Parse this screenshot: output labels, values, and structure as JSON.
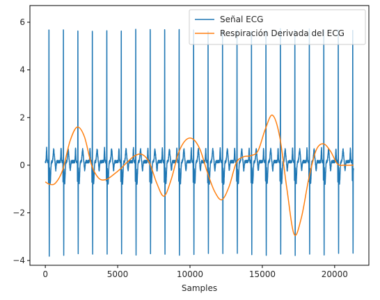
{
  "chart_data": {
    "type": "line",
    "title": "",
    "xlabel": "Samples",
    "ylabel": "",
    "xlim": [
      -1065,
      22365
    ],
    "ylim": [
      -4.2,
      6.7
    ],
    "xticks": [
      0,
      5000,
      10000,
      15000,
      20000
    ],
    "yticks": [
      -4,
      -2,
      0,
      2,
      4,
      6
    ],
    "xtick_labels": [
      "0",
      "5000",
      "10000",
      "15000",
      "20000"
    ],
    "ytick_labels": [
      "−4",
      "−2",
      "0",
      "2",
      "4",
      "6"
    ],
    "grid": false,
    "legend_position": "top-right",
    "series": [
      {
        "name": "Señal ECG",
        "color": "#1f77b4",
        "description_of_shape": "periodic ECG beats",
        "beat_x": [
          250,
          1250,
          2250,
          3250,
          4250,
          5250,
          6250,
          7250,
          8250,
          9250,
          10250,
          11250,
          12250,
          13250,
          14250,
          15250,
          16250,
          17250,
          18250,
          19250,
          20250,
          21250
        ],
        "beat_peak": [
          6.2,
          6.2,
          6.2,
          6.15,
          6.15,
          6.15,
          6.2,
          6.2,
          6.15,
          6.2,
          6.15,
          6.15,
          6.15,
          6.2,
          6.15,
          6.2,
          6.2,
          6.2,
          6.2,
          6.2,
          6.2,
          6.2
        ],
        "beat_trough": [
          -3.65,
          -3.65,
          -3.6,
          -3.6,
          -3.65,
          -3.6,
          -3.65,
          -3.6,
          -3.55,
          -3.6,
          -3.6,
          -3.6,
          -3.6,
          -3.6,
          -3.6,
          -3.6,
          -3.6,
          -3.65,
          -3.65,
          -3.6,
          -3.6,
          -3.6
        ],
        "x_end": 21300
      },
      {
        "name": "Respiración Derivada del ECG",
        "color": "#ff7f0e",
        "x": [
          0,
          300,
          700,
          1200,
          1700,
          2200,
          2700,
          3200,
          3700,
          4200,
          4700,
          5200,
          5700,
          6200,
          6700,
          7200,
          7700,
          8200,
          8700,
          9200,
          9700,
          10200,
          10700,
          11200,
          11700,
          12200,
          12700,
          13200,
          13700,
          14200,
          14700,
          15200,
          15700,
          16200,
          16700,
          17200,
          17700,
          18200,
          18700,
          19200,
          19700,
          20200,
          20700,
          21300
        ],
        "y": [
          -0.7,
          -0.8,
          -0.75,
          -0.2,
          1.0,
          1.6,
          1.2,
          0.0,
          -0.55,
          -0.6,
          -0.4,
          -0.15,
          0.15,
          0.4,
          0.45,
          0.1,
          -0.75,
          -1.3,
          -0.6,
          0.5,
          1.05,
          1.1,
          0.65,
          -0.3,
          -1.1,
          -1.45,
          -0.9,
          0.1,
          0.35,
          0.4,
          0.6,
          1.5,
          2.1,
          1.2,
          -1.0,
          -2.9,
          -2.2,
          -0.6,
          0.6,
          0.9,
          0.6,
          0.05,
          0.0,
          0.0
        ]
      }
    ]
  }
}
